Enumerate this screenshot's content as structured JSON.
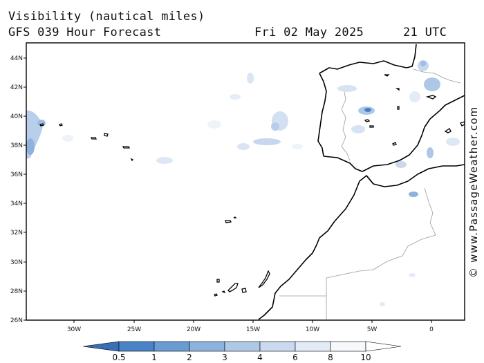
{
  "header": {
    "variable": "Visibility (nautical miles)",
    "model": "GFS 039 Hour Forecast",
    "date": "Fri 02 May 2025",
    "time": "21 UTC"
  },
  "credit": "© www.PassageWeather.com",
  "axes": {
    "lat_ticks": [
      "44N",
      "42N",
      "40N",
      "38N",
      "36N",
      "34N",
      "32N",
      "30N",
      "28N",
      "26N"
    ],
    "lon_ticks": [
      "30W",
      "25W",
      "20W",
      "15W",
      "10W",
      "5W",
      "0"
    ]
  },
  "legend": {
    "labels": [
      "0.5",
      "1",
      "2",
      "3",
      "4",
      "6",
      "8",
      "10"
    ],
    "colors": [
      "#3a6fb6",
      "#4a82c6",
      "#6b9bd3",
      "#8db3dd",
      "#aec8e6",
      "#cad9ef",
      "#e3ebf6",
      "#f6f8fc",
      "#ffffff"
    ]
  },
  "colors": {
    "coast": "#000000",
    "border": "#999999",
    "frame": "#000000"
  }
}
